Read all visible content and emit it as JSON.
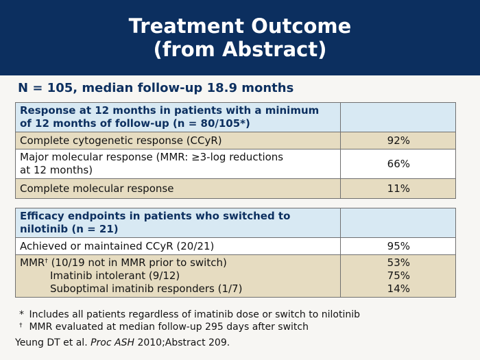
{
  "title": {
    "line1": "Treatment Outcome",
    "line2": "(from Abstract)"
  },
  "subheading": "N = 105, median follow-up 18.9 months",
  "table1": {
    "header_line1": "Response at 12 months in patients with a minimum",
    "header_line2": "of 12 months of follow-up  (n = 80/105*)",
    "rows": [
      {
        "label": "Complete cytogenetic response (CCyR)",
        "value": "92%"
      },
      {
        "label_line1": "Major molecular response (MMR:  ≥3-log reductions",
        "label_line2": "at 12 months)",
        "value": "66%"
      },
      {
        "label": "Complete molecular response",
        "value": "11%"
      }
    ]
  },
  "table2": {
    "header_line1": "Efficacy endpoints in patients who switched to",
    "header_line2": "nilotinib (n = 21)",
    "rows": [
      {
        "label": "Achieved or maintained CCyR (20/21)",
        "value": "95%"
      },
      {
        "label": "MMR",
        "label_sup": "†",
        "label_rest": " (10/19 not in MMR prior to switch)",
        "value": "53%"
      },
      {
        "label": "Imatinib intolerant (9/12)",
        "value": "75%"
      },
      {
        "label": "Suboptimal imatinib responders (1/7)",
        "value": "14%"
      }
    ]
  },
  "footnotes": [
    {
      "symbol": "*",
      "text": "Includes all patients regardless of imatinib dose or switch to nilotinib"
    },
    {
      "symbol": "†",
      "text": "MMR evaluated at median follow-up 295 days after switch"
    }
  ],
  "reference": {
    "authors": "Yeung DT et al. ",
    "journal": "Proc ASH",
    "rest": " 2010;Abstract 209."
  }
}
